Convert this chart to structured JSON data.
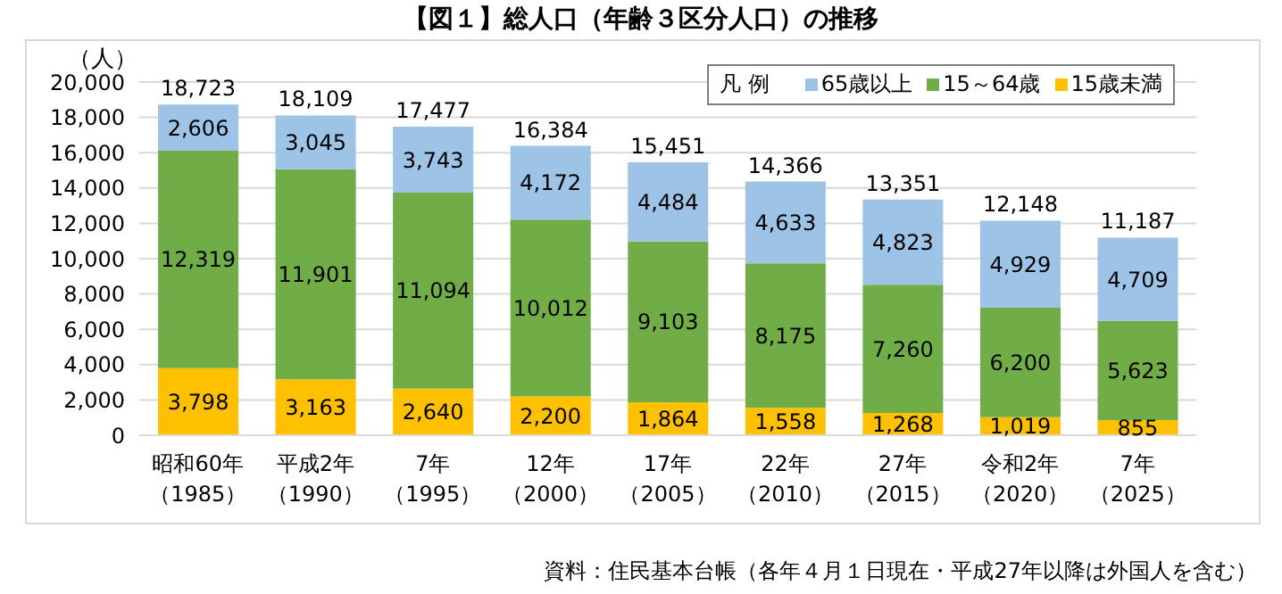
{
  "chart_data": {
    "type": "bar",
    "stacked": true,
    "title": "【図１】総人口（年齢３区分人口）の推移",
    "ylabel": "（人）",
    "legend_title": "凡 例",
    "annotations": [
      "資料：住民基本台帳（各年４月１日現在・平成27年以降は外国人を含む）"
    ],
    "categories": [
      "昭和60年（1985）",
      "平成2年（1990）",
      "7年（1995）",
      "12年（2000）",
      "17年（2005）",
      "22年（2010）",
      "27年（2015）",
      "令和2年（2020）",
      "7年（2025）"
    ],
    "series": [
      {
        "name": "15歳未満",
        "color": "#ffc000",
        "values": [
          3798,
          3163,
          2640,
          2200,
          1864,
          1558,
          1268,
          1019,
          855
        ],
        "value_labels": [
          "3,798",
          "3,163",
          "2,640",
          "2,200",
          "1,864",
          "1,558",
          "1,268",
          "1,019",
          "855"
        ]
      },
      {
        "name": "15～64歳",
        "color": "#70ad47",
        "values": [
          12319,
          11901,
          11094,
          10012,
          9103,
          8175,
          7260,
          6200,
          5623
        ],
        "value_labels": [
          "12,319",
          "11,901",
          "11,094",
          "10,012",
          "9,103",
          "8,175",
          "7,260",
          "6,200",
          "5,623"
        ]
      },
      {
        "name": "65歳以上",
        "color": "#9dc3e6",
        "values": [
          2606,
          3045,
          3743,
          4172,
          4484,
          4633,
          4823,
          4929,
          4709
        ],
        "value_labels": [
          "2,606",
          "3,045",
          "3,743",
          "4,172",
          "4,484",
          "4,633",
          "4,823",
          "4,929",
          "4,709"
        ]
      }
    ],
    "totals": [
      "18,723",
      "18,109",
      "17,477",
      "16,384",
      "15,451",
      "14,366",
      "13,351",
      "12,148",
      "11,187"
    ],
    "ylim": [
      0,
      20000
    ],
    "yticks": [
      0,
      {
        "value": 2000,
        "label": "2,000"
      },
      {
        "value": 4000,
        "label": "4,000"
      },
      {
        "value": 6000,
        "label": "6,000"
      },
      {
        "value": 8000,
        "label": "8,000"
      },
      {
        "value": 10000,
        "label": "10,000"
      },
      {
        "value": 12000,
        "label": "12,000"
      },
      {
        "value": 14000,
        "label": "14,000"
      },
      {
        "value": 16000,
        "label": "16,000"
      },
      {
        "value": 18000,
        "label": "18,000"
      },
      {
        "value": 20000,
        "label": "20,000"
      }
    ],
    "grid": "y",
    "legend": "top right"
  }
}
